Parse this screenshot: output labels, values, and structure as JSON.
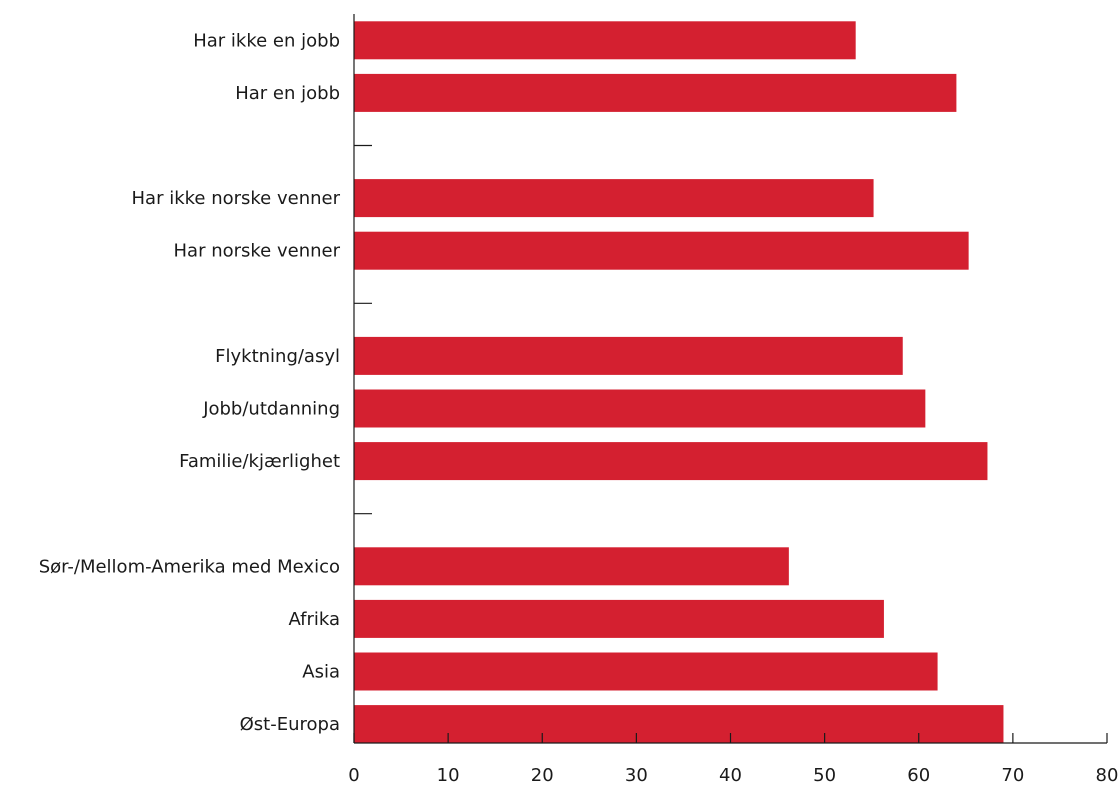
{
  "chart_data": {
    "type": "bar",
    "orientation": "horizontal",
    "title": "",
    "xlabel": "",
    "ylabel": "",
    "xlim": [
      0,
      80
    ],
    "x_ticks": [
      0,
      10,
      20,
      30,
      40,
      50,
      60,
      70,
      80
    ],
    "grid": false,
    "bar_color": "#d42030",
    "groups": [
      {
        "bars": [
          {
            "label": "Har ikke en jobb",
            "value": 53.3
          },
          {
            "label": "Har en jobb",
            "value": 64.0
          }
        ]
      },
      {
        "bars": [
          {
            "label": "Har ikke norske venner",
            "value": 55.2
          },
          {
            "label": "Har norske venner",
            "value": 65.3
          }
        ]
      },
      {
        "bars": [
          {
            "label": "Flyktning/asyl",
            "value": 58.3
          },
          {
            "label": "Jobb/utdanning",
            "value": 60.7
          },
          {
            "label": "Familie/kjærlighet",
            "value": 67.3
          }
        ]
      },
      {
        "bars": [
          {
            "label": "Sør-/Mellom-Amerika med Mexico",
            "value": 46.2
          },
          {
            "label": "Afrika",
            "value": 56.3
          },
          {
            "label": "Asia",
            "value": 62.0
          },
          {
            "label": "Øst-Europa",
            "value": 69.0
          }
        ]
      }
    ]
  }
}
